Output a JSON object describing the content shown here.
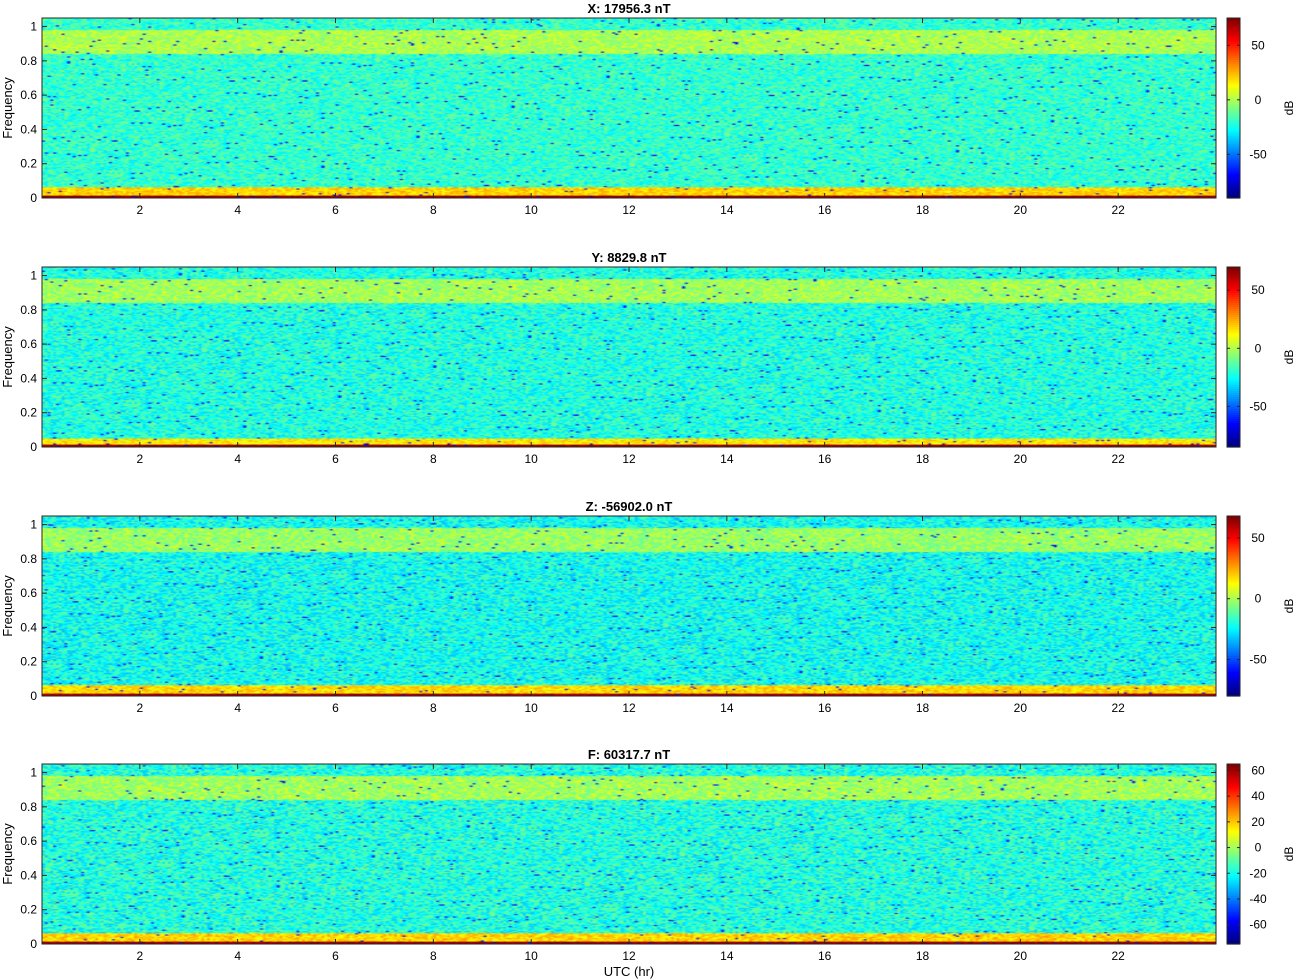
{
  "figure": {
    "shared_xlabel": "UTC (hr)"
  },
  "chart_data": [
    {
      "type": "heatmap",
      "title": "X: 17956.3 nT",
      "xlabel": "",
      "ylabel": "Frequency",
      "x_ticks": [
        2,
        4,
        6,
        8,
        10,
        12,
        14,
        16,
        18,
        20,
        22
      ],
      "y_ticks": [
        0,
        0.2,
        0.4,
        0.6,
        0.8,
        1
      ],
      "xlim": [
        0,
        24
      ],
      "ylim": [
        0,
        1.05
      ],
      "colorbar": {
        "label": "dB",
        "range": [
          -90,
          75
        ],
        "ticks": [
          -50,
          0,
          50
        ]
      },
      "structure": {
        "background_db": -20,
        "upper_band": {
          "freq_range": [
            0.84,
            0.98
          ],
          "level_db": 0
        },
        "low_freq_band": {
          "freq_range": [
            0,
            0.06
          ],
          "level_db": 20
        },
        "baseline": {
          "freq_range": [
            0,
            0.015
          ],
          "level_db": 70
        }
      }
    },
    {
      "type": "heatmap",
      "title": "Y: 8829.8 nT",
      "xlabel": "",
      "ylabel": "Frequency",
      "x_ticks": [
        2,
        4,
        6,
        8,
        10,
        12,
        14,
        16,
        18,
        20,
        22
      ],
      "y_ticks": [
        0,
        0.2,
        0.4,
        0.6,
        0.8,
        1
      ],
      "xlim": [
        0,
        24
      ],
      "ylim": [
        0,
        1.05
      ],
      "colorbar": {
        "label": "dB",
        "range": [
          -85,
          70
        ],
        "ticks": [
          -50,
          0,
          50
        ]
      },
      "structure": {
        "background_db": -22,
        "upper_band": {
          "freq_range": [
            0.84,
            0.98
          ],
          "level_db": -2
        },
        "low_freq_band": {
          "freq_range": [
            0,
            0.05
          ],
          "level_db": 15
        },
        "baseline": {
          "freq_range": [
            0,
            0.015
          ],
          "level_db": 65
        }
      }
    },
    {
      "type": "heatmap",
      "title": "Z: -56902.0 nT",
      "xlabel": "",
      "ylabel": "Frequency",
      "x_ticks": [
        2,
        4,
        6,
        8,
        10,
        12,
        14,
        16,
        18,
        20,
        22
      ],
      "y_ticks": [
        0,
        0.2,
        0.4,
        0.6,
        0.8,
        1
      ],
      "xlim": [
        0,
        24
      ],
      "ylim": [
        0,
        1.05
      ],
      "colorbar": {
        "label": "dB",
        "range": [
          -80,
          68
        ],
        "ticks": [
          -50,
          0,
          50
        ]
      },
      "structure": {
        "background_db": -22,
        "upper_band": {
          "freq_range": [
            0.84,
            0.98
          ],
          "level_db": -2
        },
        "low_freq_band": {
          "freq_range": [
            0,
            0.06
          ],
          "level_db": 18
        },
        "baseline": {
          "freq_range": [
            0,
            0.015
          ],
          "level_db": 62
        }
      }
    },
    {
      "type": "heatmap",
      "title": "F: 60317.7 nT",
      "xlabel": "UTC (hr)",
      "ylabel": "Frequency",
      "x_ticks": [
        2,
        4,
        6,
        8,
        10,
        12,
        14,
        16,
        18,
        20,
        22
      ],
      "y_ticks": [
        0,
        0.2,
        0.4,
        0.6,
        0.8,
        1
      ],
      "xlim": [
        0,
        24
      ],
      "ylim": [
        0,
        1.05
      ],
      "colorbar": {
        "label": "dB",
        "range": [
          -75,
          65
        ],
        "ticks": [
          -60,
          -40,
          -20,
          0,
          20,
          40,
          60
        ]
      },
      "structure": {
        "background_db": -18,
        "upper_band": {
          "freq_range": [
            0.84,
            0.98
          ],
          "level_db": 0
        },
        "low_freq_band": {
          "freq_range": [
            0,
            0.06
          ],
          "level_db": 18
        },
        "baseline": {
          "freq_range": [
            0,
            0.015
          ],
          "level_db": 60
        }
      }
    }
  ]
}
